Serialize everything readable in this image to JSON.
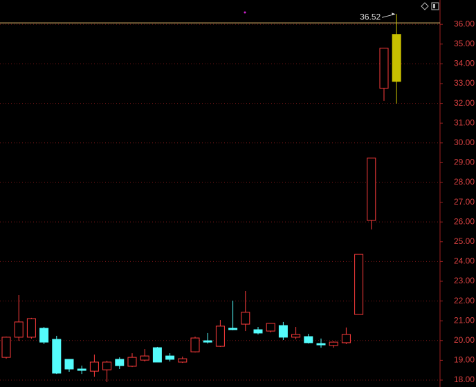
{
  "chart_data": {
    "type": "candlestick",
    "open": [
      19.15,
      20.17,
      20.17,
      20.62,
      20.06,
      19.05,
      18.56,
      18.45,
      18.52,
      19.05,
      18.7,
      19.01,
      19.64,
      19.22,
      18.91,
      19.43,
      19.99,
      19.71,
      20.62,
      20.83,
      20.55,
      20.48,
      20.76,
      20.17,
      20.2,
      19.85,
      19.75,
      19.89,
      21.32,
      26.08,
      32.76,
      33.11
    ],
    "high": [
      20.2,
      22.3,
      21.15,
      20.69,
      20.24,
      19.05,
      18.73,
      19.29,
      18.98,
      19.15,
      19.36,
      19.57,
      19.68,
      19.36,
      19.19,
      20.2,
      20.38,
      21.04,
      22.02,
      22.51,
      20.69,
      20.87,
      20.94,
      20.69,
      20.34,
      20.1,
      19.96,
      20.66,
      24.36,
      29.23,
      34.79,
      36.52
    ],
    "low": [
      19.08,
      19.99,
      20.1,
      19.82,
      18.31,
      18.42,
      18.31,
      18.17,
      17.9,
      18.56,
      18.66,
      18.94,
      18.94,
      18.94,
      18.87,
      19.4,
      19.85,
      19.68,
      20.52,
      20.48,
      20.31,
      20.41,
      20.03,
      20.06,
      19.85,
      19.64,
      19.64,
      19.82,
      21.32,
      25.62,
      32.13,
      31.99
    ],
    "close": [
      20.17,
      20.94,
      21.11,
      19.92,
      18.35,
      18.56,
      18.49,
      18.91,
      18.91,
      18.73,
      19.15,
      19.22,
      18.91,
      19.05,
      19.08,
      20.13,
      19.92,
      20.73,
      20.55,
      21.43,
      20.38,
      20.87,
      20.17,
      20.31,
      19.89,
      19.78,
      19.92,
      20.31,
      24.36,
      29.23,
      34.79,
      35.49
    ],
    "up_color": "#ff3c3c",
    "down_color": "#54fcfc",
    "highlight": {
      "index": 31,
      "color": "#c8c000"
    },
    "reference_line": 36.07,
    "ylim": [
      17.65,
      37.23
    ],
    "yticks": [
      {
        "value": 18,
        "label": "18.00"
      },
      {
        "value": 19,
        "label": "19.00"
      },
      {
        "value": 20,
        "label": "20.00"
      },
      {
        "value": 21,
        "label": "21.00"
      },
      {
        "value": 22,
        "label": "22.00"
      },
      {
        "value": 23,
        "label": "23.00"
      },
      {
        "value": 24,
        "label": "24.00"
      },
      {
        "value": 25,
        "label": "25.00"
      },
      {
        "value": 26,
        "label": "26.00"
      },
      {
        "value": 27,
        "label": "27.00"
      },
      {
        "value": 28,
        "label": "28.00"
      },
      {
        "value": 29,
        "label": "29.00"
      },
      {
        "value": 30,
        "label": "30.00"
      },
      {
        "value": 31,
        "label": "31.00"
      },
      {
        "value": 32,
        "label": "32.00"
      },
      {
        "value": 33,
        "label": "33.00"
      },
      {
        "value": 34,
        "label": "34.00"
      },
      {
        "value": 35,
        "label": "35.00"
      },
      {
        "value": 36,
        "label": "36.00"
      }
    ],
    "grid": true
  }
}
